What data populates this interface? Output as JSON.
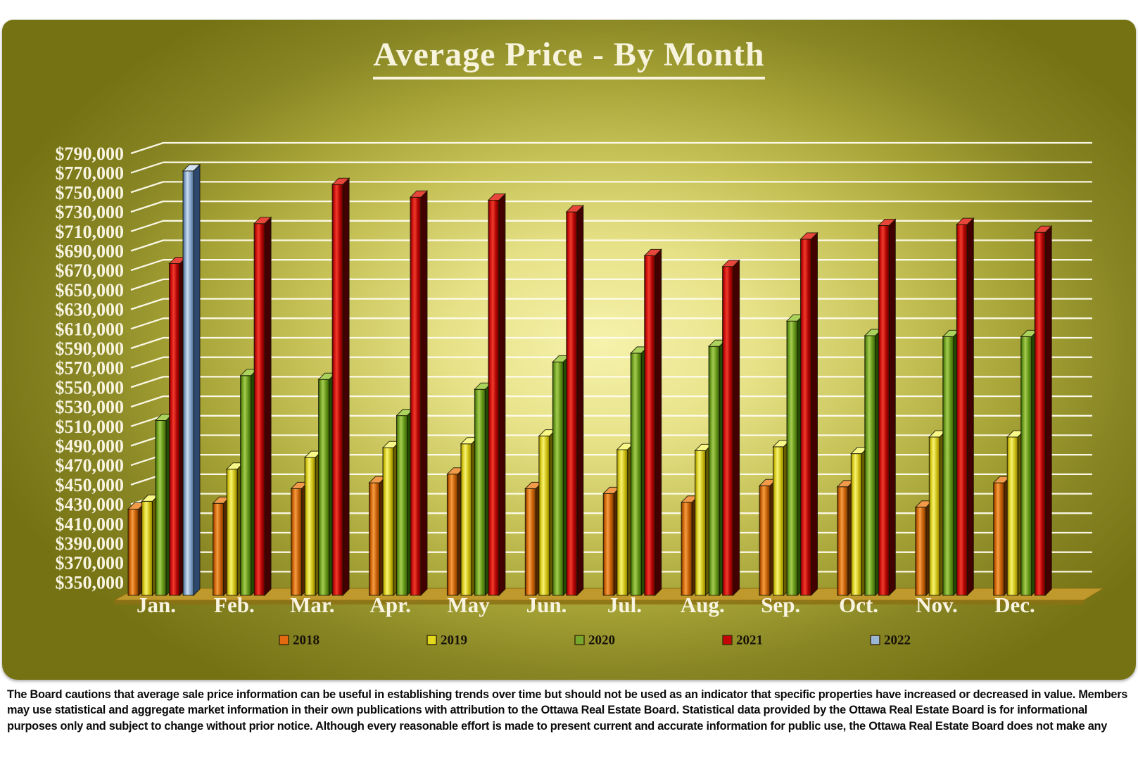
{
  "chart_data": {
    "type": "bar",
    "title": "Average Price - By Month",
    "categories": [
      "Jan.",
      "Feb.",
      "Mar.",
      "Apr.",
      "May",
      "Jun.",
      "Jul.",
      "Aug.",
      "Sep.",
      "Oct.",
      "Nov.",
      "Dec."
    ],
    "ylim": [
      350000,
      790000
    ],
    "ytick_step": 20000,
    "ytick_labels": [
      "$790,000",
      "$770,000",
      "$750,000",
      "$730,000",
      "$710,000",
      "$690,000",
      "$670,000",
      "$650,000",
      "$630,000",
      "$610,000",
      "$590,000",
      "$570,000",
      "$550,000",
      "$530,000",
      "$510,000",
      "$490,000",
      "$470,000",
      "$450,000",
      "$430,000",
      "$410,000",
      "$390,000",
      "$370,000",
      "$350,000"
    ],
    "grid": "horizontal",
    "legend_position": "bottom",
    "background_colors": {
      "panel_edge": "#747212",
      "panel_glow": "#f6f2ac",
      "gridline": "#fffcee",
      "floor": "#bf992b",
      "title_text": "#f7f3dd"
    },
    "series": [
      {
        "name": "2018",
        "legend_color": "#e36a10",
        "gradient": [
          "#6e3300",
          "#cd6208",
          "#f59d42",
          "#c35d06",
          "#7d3c00"
        ],
        "top": "#f09a4a",
        "side": "#552700",
        "values": [
          425000,
          431000,
          446000,
          452000,
          461000,
          446000,
          441000,
          432000,
          449000,
          448000,
          427000,
          452000
        ]
      },
      {
        "name": "2019",
        "legend_color": "#e3d91c",
        "gradient": [
          "#877a00",
          "#d6c91a",
          "#f7f272",
          "#cdbf12",
          "#8f8200"
        ],
        "top": "#f8f888",
        "side": "#665c00",
        "values": [
          433000,
          466000,
          478000,
          488000,
          492000,
          500000,
          486000,
          485000,
          489000,
          482000,
          499000,
          499000
        ]
      },
      {
        "name": "2020",
        "legend_color": "#76a62c",
        "gradient": [
          "#2c5a06",
          "#6d9c20",
          "#a4cc50",
          "#659618",
          "#3a660a"
        ],
        "top": "#abd25c",
        "side": "#234d02",
        "values": [
          516000,
          562000,
          558000,
          521000,
          548000,
          576000,
          585000,
          592000,
          618000,
          603000,
          602000,
          602000
        ]
      },
      {
        "name": "2021",
        "legend_color": "#c40606",
        "gradient": [
          "#650000",
          "#c90d0d",
          "#ef3b2b",
          "#b00404",
          "#700000"
        ],
        "top": "#e8463a",
        "side": "#420000",
        "values": [
          677000,
          718000,
          758000,
          745000,
          742000,
          730000,
          685000,
          674000,
          702000,
          716000,
          717000,
          709000
        ]
      },
      {
        "name": "2022",
        "legend_color": "#9ab7d8",
        "gradient": [
          "#3c5b83",
          "#7d9cc2",
          "#c9dbef",
          "#86a5c9",
          "#4c6d97"
        ],
        "top": "#d3e2f3",
        "side": "#2c486e",
        "values": [
          772000,
          null,
          null,
          null,
          null,
          null,
          null,
          null,
          null,
          null,
          null,
          null
        ]
      }
    ]
  },
  "footer": {
    "disclaimer": "The Board cautions that average sale price information can be useful in establishing trends over time but should not be used as an indicator that specific properties have increased or decreased in value.  Members may use statistical and aggregate market information in their own publications with attribution to the Ottawa Real Estate Board. Statistical data provided by the Ottawa Real Estate Board is for informational purposes only and subject to change without prior notice. Although every reasonable effort is made to present current and accurate information for public use, the Ottawa Real Estate Board does not make any"
  }
}
